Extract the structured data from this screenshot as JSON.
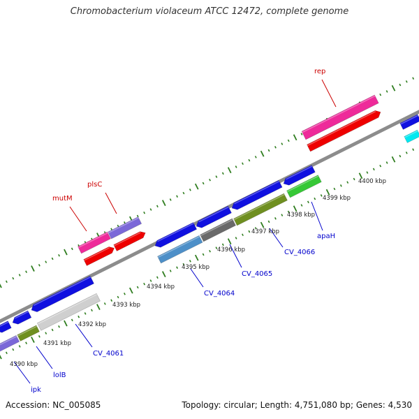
{
  "title": "Chromobacterium violaceum ATCC 12472, complete genome",
  "accession": "Accession: NC_005085",
  "stats": "Topology: circular; Length: 4,751,080 bp; Genes: 4,530",
  "colors": {
    "backbone": "#8c8c8c",
    "tick": "#2f7d1f",
    "ticklabel": "#222222",
    "label_fwd": "#cc0000",
    "label_rev": "#0000cc",
    "blue": "#1010e0",
    "lavender": "#7b68d8",
    "pink": "#ee2a9a",
    "red": "#ee0000",
    "olive": "#6f8f20",
    "silver": "#cfcfcf",
    "steel": "#4d8fc8",
    "dimgray": "#6a6a6a",
    "green": "#36c836",
    "cyan": "#00e8f0"
  },
  "kbp_labels": [
    "4390 kbp",
    "4391 kbp",
    "4392 kbp",
    "4393 kbp",
    "4394 kbp",
    "4395 kbp",
    "4396 kbp",
    "4397 kbp",
    "4398 kbp",
    "4399 kbp",
    "4400 kbp"
  ],
  "gene_labels": [
    {
      "text": "rep",
      "strand": "fwd"
    },
    {
      "text": "plsC",
      "strand": "fwd"
    },
    {
      "text": "mutM",
      "strand": "fwd"
    },
    {
      "text": "apaH",
      "strand": "rev"
    },
    {
      "text": "CV_4066",
      "strand": "rev"
    },
    {
      "text": "CV_4065",
      "strand": "rev"
    },
    {
      "text": "CV_4064",
      "strand": "rev"
    },
    {
      "text": "CV_4061",
      "strand": "rev"
    },
    {
      "text": "lolB",
      "strand": "rev"
    },
    {
      "text": "ipk",
      "strand": "rev"
    }
  ]
}
